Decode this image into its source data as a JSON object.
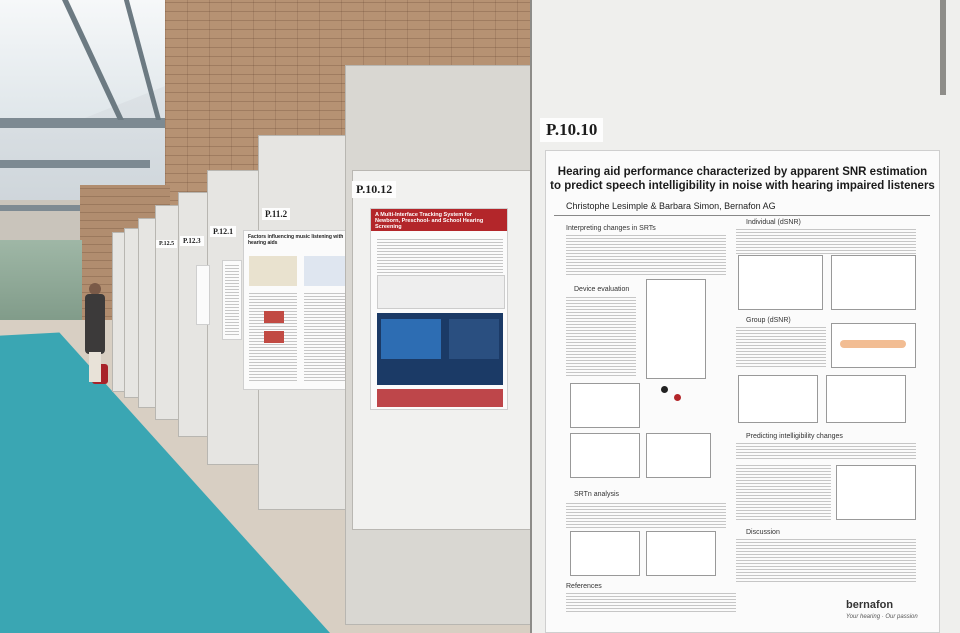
{
  "posters": {
    "p10_10": {
      "code": "P.10.10",
      "title_line1": "Hearing aid performance characterized by apparent SNR estimation",
      "title_line2": "to predict speech intelligibility in noise with hearing impaired listeners",
      "authors": "Christophe Lesimple & Barbara Simon, Bernafon AG",
      "sections": {
        "interpreting": "Interpreting changes in SRTs",
        "individual": "Individual (dSNR)",
        "device": "Device evaluation",
        "group": "Group (dSNR)",
        "predicting": "Predicting intelligibility changes",
        "srt": "SRTn analysis",
        "discussion": "Discussion",
        "references": "References"
      },
      "brand": "bernafon",
      "brand_tagline": "Your hearing · Our passion"
    },
    "p10_12": {
      "code": "P.10.12",
      "title": "A Multi-Interface Tracking System for Newborn, Preschool- and School Hearing Screening"
    },
    "p11_2": {
      "code": "P.11.2",
      "title": "Factors influencing music listening with hearing aids"
    },
    "p12_1": {
      "code": "P.12.1"
    },
    "p12_3": {
      "code": "P.12.3"
    },
    "p12_5": {
      "code": "P.12.5"
    }
  },
  "colors": {
    "carpet": "#3aa6b3",
    "poster_header_red": "#b3262a",
    "orange_curve": "#e8873a"
  }
}
